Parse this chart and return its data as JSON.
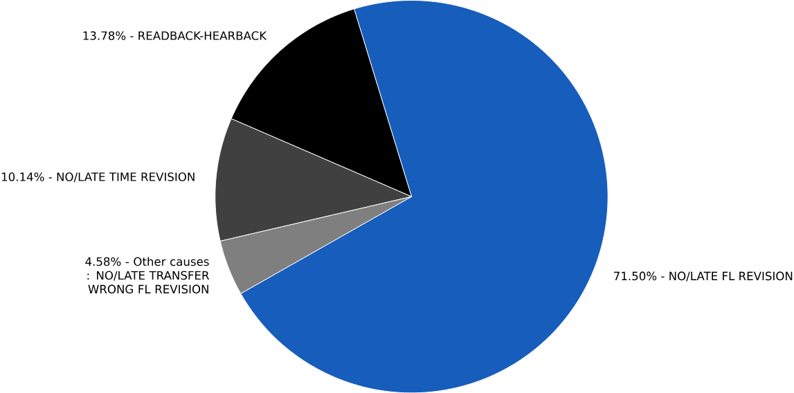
{
  "chart_data": {
    "type": "pie",
    "categories": [
      "71.50% - NO/LATE FL REVISION",
      "13.78% - READBACK-HEARBACK",
      "10.14% - NO/LATE TIME REVISION",
      "4.58% - Other causes : NO/LATE TRANSFER WRONG FL REVISION"
    ],
    "values": [
      71.5,
      13.78,
      10.14,
      4.58
    ],
    "colors": [
      "#175dbc",
      "#000000",
      "#404040",
      "#7f7f7f"
    ]
  }
}
